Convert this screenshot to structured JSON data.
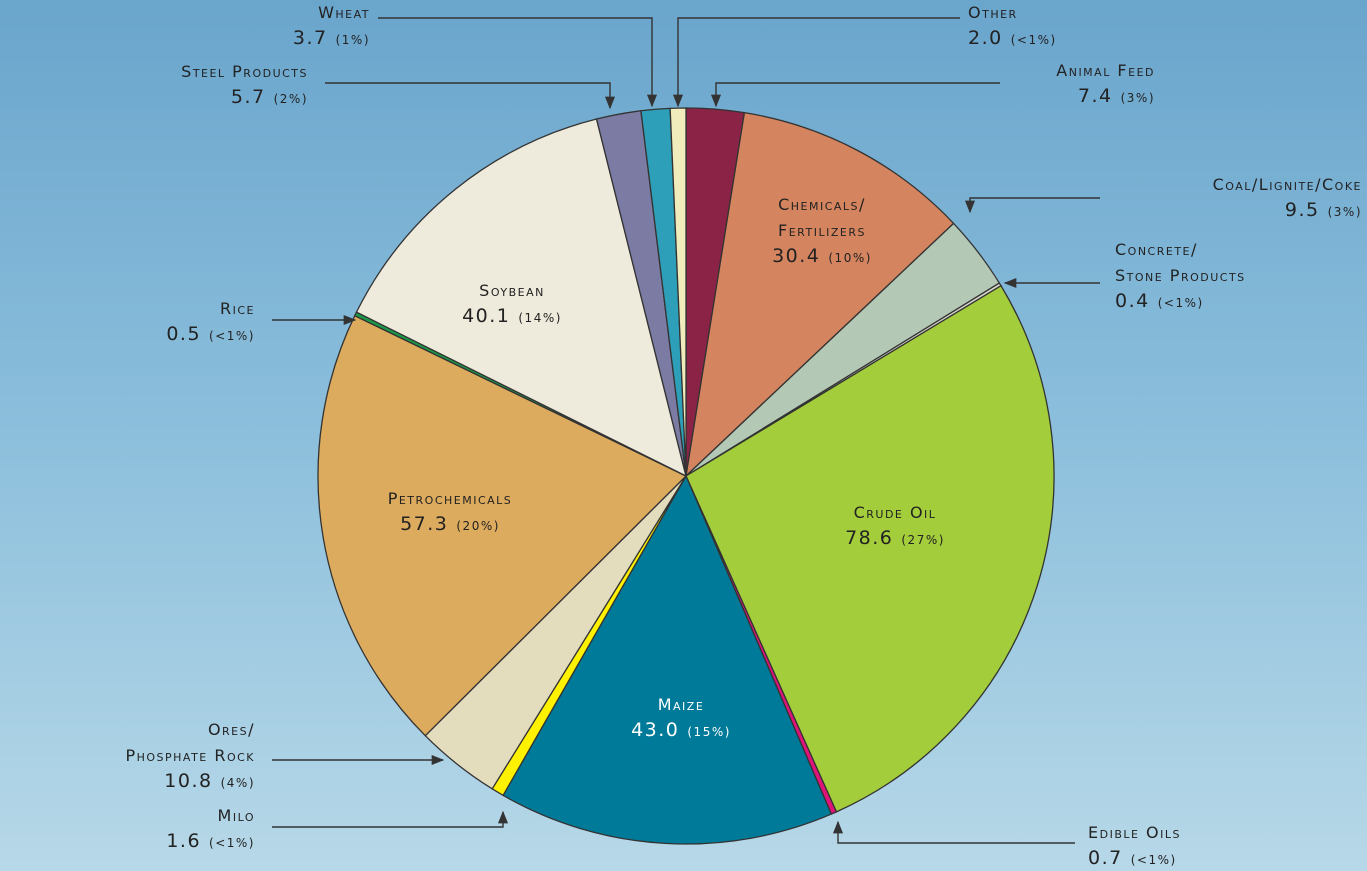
{
  "chart_data": {
    "type": "pie",
    "categories": [
      [
        "Animal Feed"
      ],
      [
        "Chemicals/",
        "Fertilizers"
      ],
      [
        "Coal/Lignite/Coke"
      ],
      [
        "Concrete/",
        "Stone Products"
      ],
      [
        "Crude Oil"
      ],
      [
        "Edible Oils"
      ],
      [
        "Maize"
      ],
      [
        "Milo"
      ],
      [
        "Ores/",
        "Phosphate Rock"
      ],
      [
        "Petrochemicals"
      ],
      [
        "Rice"
      ],
      [
        "Soybean"
      ],
      [
        "Steel Products"
      ],
      [
        "Wheat"
      ],
      [
        "Other"
      ]
    ],
    "values": [
      7.4,
      30.4,
      9.5,
      0.4,
      78.6,
      0.7,
      43,
      1.6,
      10.8,
      57.3,
      0.5,
      40.1,
      5.7,
      3.7,
      2
    ],
    "value_labels": [
      "7.4",
      "30.4",
      "9.5",
      "0.4",
      "78.6",
      "0.7",
      "43.0",
      "1.6",
      "10.8",
      "57.3",
      "0.5",
      "40.1",
      "5.7",
      "3.7",
      "2.0"
    ],
    "percent_labels": [
      "(3%)",
      "(10%)",
      "(3%)",
      "(<1%)",
      "(27%)",
      "(<1%)",
      "(15%)",
      "(<1%)",
      "(4%)",
      "(20%)",
      "(<1%)",
      "(14%)",
      "(2%)",
      "(1%)",
      "(<1%)"
    ],
    "colors": [
      "#8b2346",
      "#d4845f",
      "#b3c8b5",
      "#d9d9cf",
      "#a3cd3a",
      "#e0137a",
      "#007a99",
      "#fff200",
      "#e4ddbd",
      "#ddab5e",
      "#1a9a48",
      "#eeeadc",
      "#7b7ba3",
      "#2e9fb8",
      "#f0ecbb"
    ]
  }
}
